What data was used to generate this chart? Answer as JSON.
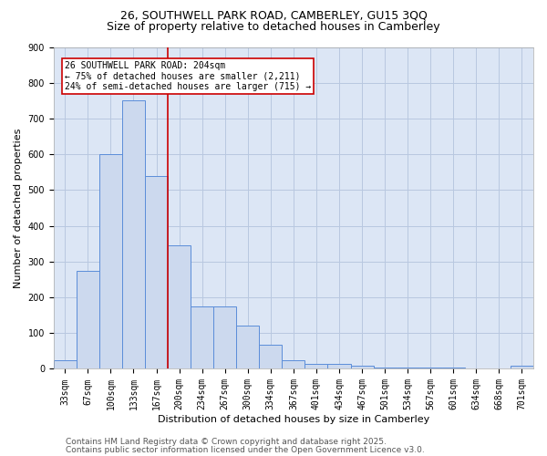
{
  "title_line1": "26, SOUTHWELL PARK ROAD, CAMBERLEY, GU15 3QQ",
  "title_line2": "Size of property relative to detached houses in Camberley",
  "xlabel": "Distribution of detached houses by size in Camberley",
  "ylabel": "Number of detached properties",
  "bar_labels": [
    "33sqm",
    "67sqm",
    "100sqm",
    "133sqm",
    "167sqm",
    "200sqm",
    "234sqm",
    "267sqm",
    "300sqm",
    "334sqm",
    "367sqm",
    "401sqm",
    "434sqm",
    "467sqm",
    "501sqm",
    "534sqm",
    "567sqm",
    "601sqm",
    "634sqm",
    "668sqm",
    "701sqm"
  ],
  "bar_values": [
    25,
    275,
    600,
    750,
    540,
    345,
    175,
    175,
    120,
    68,
    25,
    15,
    15,
    10,
    5,
    5,
    5,
    5,
    0,
    0,
    8
  ],
  "bar_color": "#ccd9ee",
  "bar_edge_color": "#5b8dd9",
  "vline_x_idx": 5,
  "vline_color": "#cc0000",
  "annotation_text": "26 SOUTHWELL PARK ROAD: 204sqm\n← 75% of detached houses are smaller (2,211)\n24% of semi-detached houses are larger (715) →",
  "annotation_box_color": "white",
  "annotation_box_edge": "#cc0000",
  "ylim": [
    0,
    900
  ],
  "yticks": [
    0,
    100,
    200,
    300,
    400,
    500,
    600,
    700,
    800,
    900
  ],
  "grid_color": "#b8c8e0",
  "background_color": "#dce6f5",
  "footer_line1": "Contains HM Land Registry data © Crown copyright and database right 2025.",
  "footer_line2": "Contains public sector information licensed under the Open Government Licence v3.0.",
  "title1_fontsize": 9,
  "title2_fontsize": 9,
  "axis_label_fontsize": 8,
  "tick_fontsize": 7,
  "annotation_fontsize": 7,
  "footer_fontsize": 6.5
}
